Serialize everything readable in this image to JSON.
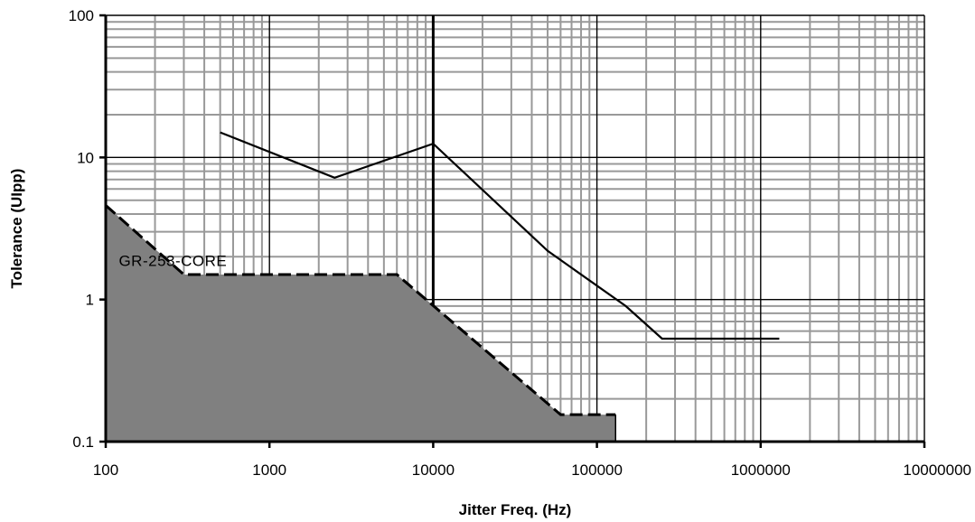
{
  "chart_data": {
    "type": "line",
    "xlabel": "Jitter Freq. (Hz)",
    "ylabel": "Tolerance (UIpp)",
    "x_scale": "log",
    "y_scale": "log",
    "xlim": [
      100,
      10000000
    ],
    "ylim": [
      0.1,
      100
    ],
    "x_ticks": [
      {
        "value": 100,
        "label": "100"
      },
      {
        "value": 1000,
        "label": "1000"
      },
      {
        "value": 10000,
        "label": "10000"
      },
      {
        "value": 100000,
        "label": "100000"
      },
      {
        "value": 1000000,
        "label": "1000000"
      },
      {
        "value": 10000000,
        "label": "10000000"
      }
    ],
    "y_ticks": [
      {
        "value": 0.1,
        "label": "0.1"
      },
      {
        "value": 1,
        "label": "1"
      },
      {
        "value": 10,
        "label": "10"
      },
      {
        "value": 100,
        "label": "100"
      }
    ],
    "grid": true,
    "series": [
      {
        "name": "GR-253-CORE",
        "style": "dashed-filled",
        "color": "#808080",
        "x": [
          100,
          300,
          6000,
          60000,
          130000
        ],
        "y": [
          4.6,
          1.5,
          1.5,
          0.155,
          0.155
        ]
      },
      {
        "style": "solid",
        "color": "#000000",
        "x": [
          500,
          2500,
          10000,
          50000,
          150000,
          250000,
          1300000
        ],
        "y": [
          15,
          7.2,
          12.5,
          2.2,
          0.9,
          0.53,
          0.53
        ]
      }
    ],
    "annotations": [
      {
        "text": "GR-253-CORE",
        "x": 300,
        "y": 1.75
      }
    ]
  }
}
